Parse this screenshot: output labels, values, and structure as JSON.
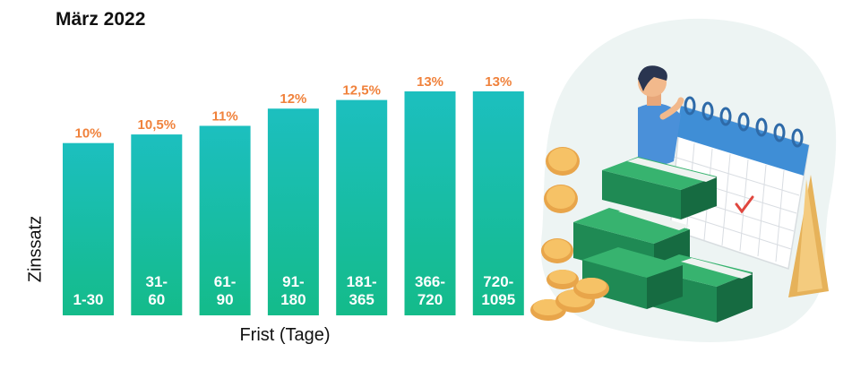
{
  "chart_data": {
    "type": "bar",
    "title": "März 2022",
    "xlabel": "Frist (Tage)",
    "ylabel": "Zinssatz",
    "categories": [
      [
        "1-30"
      ],
      [
        "31-",
        "60"
      ],
      [
        "61-",
        "90"
      ],
      [
        "91-",
        "180"
      ],
      [
        "181-",
        "365"
      ],
      [
        "366-",
        "720"
      ],
      [
        "720-",
        "1095"
      ]
    ],
    "values": [
      10,
      10.5,
      11,
      12,
      12.5,
      13,
      13
    ],
    "value_labels": [
      "10%",
      "10,5%",
      "11%",
      "12%",
      "12,5%",
      "13%",
      "13%"
    ],
    "ylim": [
      0,
      13
    ],
    "grid": false,
    "colors": {
      "bar_top": "#1cbfbf",
      "bar_bottom": "#14bb8a",
      "value_label": "#f0823c",
      "category_label": "#ffffff"
    }
  },
  "illustration": {
    "icons": [
      "person-icon",
      "calendar-icon",
      "money-stack-icon",
      "coin-icon",
      "checkmark-icon"
    ]
  }
}
